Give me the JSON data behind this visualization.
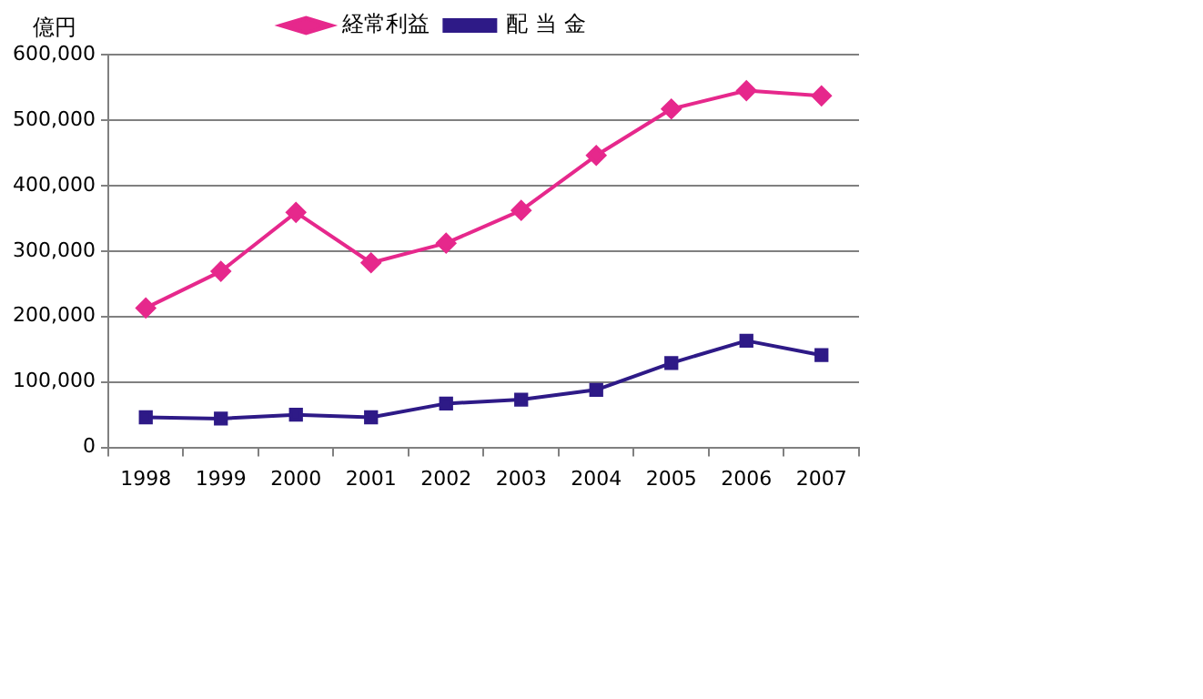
{
  "chart_data": {
    "type": "line",
    "ylabel": "億円",
    "categories": [
      "1998",
      "1999",
      "2000",
      "2001",
      "2002",
      "2003",
      "2004",
      "2005",
      "2006",
      "2007"
    ],
    "series": [
      {
        "name": "経常利益",
        "color": "#e6288c",
        "marker": "diamond",
        "values": [
          213000,
          269000,
          359000,
          282000,
          312000,
          362000,
          446000,
          517000,
          545000,
          537000
        ]
      },
      {
        "name": "配 当 金",
        "color": "#2e1a87",
        "marker": "square",
        "values": [
          46000,
          44000,
          50000,
          46000,
          67000,
          73000,
          88000,
          129000,
          163000,
          141000
        ]
      }
    ],
    "ylim": [
      0,
      600000
    ],
    "yticks": [
      {
        "value": 0,
        "label": "0"
      },
      {
        "value": 100000,
        "label": "100,000"
      },
      {
        "value": 200000,
        "label": "200,000"
      },
      {
        "value": 300000,
        "label": "300,000"
      },
      {
        "value": 400000,
        "label": "400,000"
      },
      {
        "value": 500000,
        "label": "500,000"
      },
      {
        "value": 600000,
        "label": "600,000"
      }
    ],
    "grid": "y",
    "legend": "top"
  }
}
